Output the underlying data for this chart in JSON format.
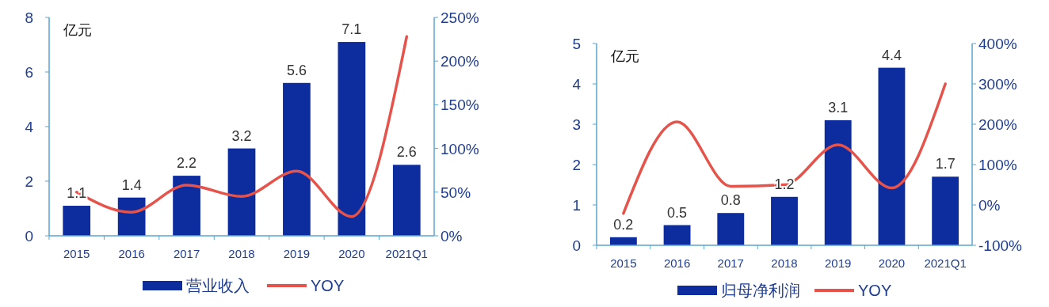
{
  "chart_data": [
    {
      "type": "bar",
      "ylabel": "亿元",
      "categories": [
        "2015",
        "2016",
        "2017",
        "2018",
        "2019",
        "2020",
        "2021Q1"
      ],
      "series": [
        {
          "name": "营业收入",
          "color": "#0d2c9e",
          "values": [
            1.1,
            1.4,
            2.2,
            3.2,
            5.6,
            7.1,
            2.6
          ],
          "value_labels": [
            "1.1",
            "1.4",
            "2.2",
            "3.2",
            "5.6",
            "7.1",
            "2.6"
          ]
        },
        {
          "name": "YOY",
          "type": "line",
          "axis": "y2",
          "color": "#e5534b",
          "values": [
            50,
            27,
            58,
            45,
            74,
            22,
            228
          ]
        }
      ],
      "ylim": [
        0,
        8
      ],
      "yticks": [
        0,
        2,
        4,
        6,
        8
      ],
      "y2lim": [
        0,
        250
      ],
      "y2ticks": [
        {
          "value": 0,
          "label": "0%"
        },
        {
          "value": 50,
          "label": "50%"
        },
        {
          "value": 100,
          "label": "100%"
        },
        {
          "value": 150,
          "label": "150%"
        },
        {
          "value": 200,
          "label": "200%"
        },
        {
          "value": 250,
          "label": "250%"
        }
      ],
      "legend": "bottom",
      "grid": false,
      "marker": "none"
    },
    {
      "type": "bar",
      "ylabel": "亿元",
      "categories": [
        "2015",
        "2016",
        "2017",
        "2018",
        "2019",
        "2020",
        "2021Q1"
      ],
      "series": [
        {
          "name": "归母净利润",
          "color": "#0d2c9e",
          "values": [
            0.2,
            0.5,
            0.8,
            1.2,
            3.1,
            4.4,
            1.7
          ],
          "value_labels": [
            "0.2",
            "0.5",
            "0.8",
            "1.2",
            "3.1",
            "4.4",
            "1.7"
          ]
        },
        {
          "name": "YOY",
          "type": "line",
          "axis": "y2",
          "color": "#e5534b",
          "values": [
            -21,
            206,
            46,
            50,
            149,
            42,
            300
          ]
        }
      ],
      "ylim": [
        0,
        5
      ],
      "yticks": [
        0,
        1,
        2,
        3,
        4,
        5
      ],
      "y2lim": [
        -100,
        400
      ],
      "y2ticks": [
        {
          "value": -100,
          "label": "-100%"
        },
        {
          "value": 0,
          "label": "0%"
        },
        {
          "value": 100,
          "label": "100%"
        },
        {
          "value": 200,
          "label": "200%"
        },
        {
          "value": 300,
          "label": "300%"
        },
        {
          "value": 400,
          "label": "400%"
        }
      ],
      "legend": "bottom",
      "grid": false,
      "marker": "none"
    }
  ]
}
